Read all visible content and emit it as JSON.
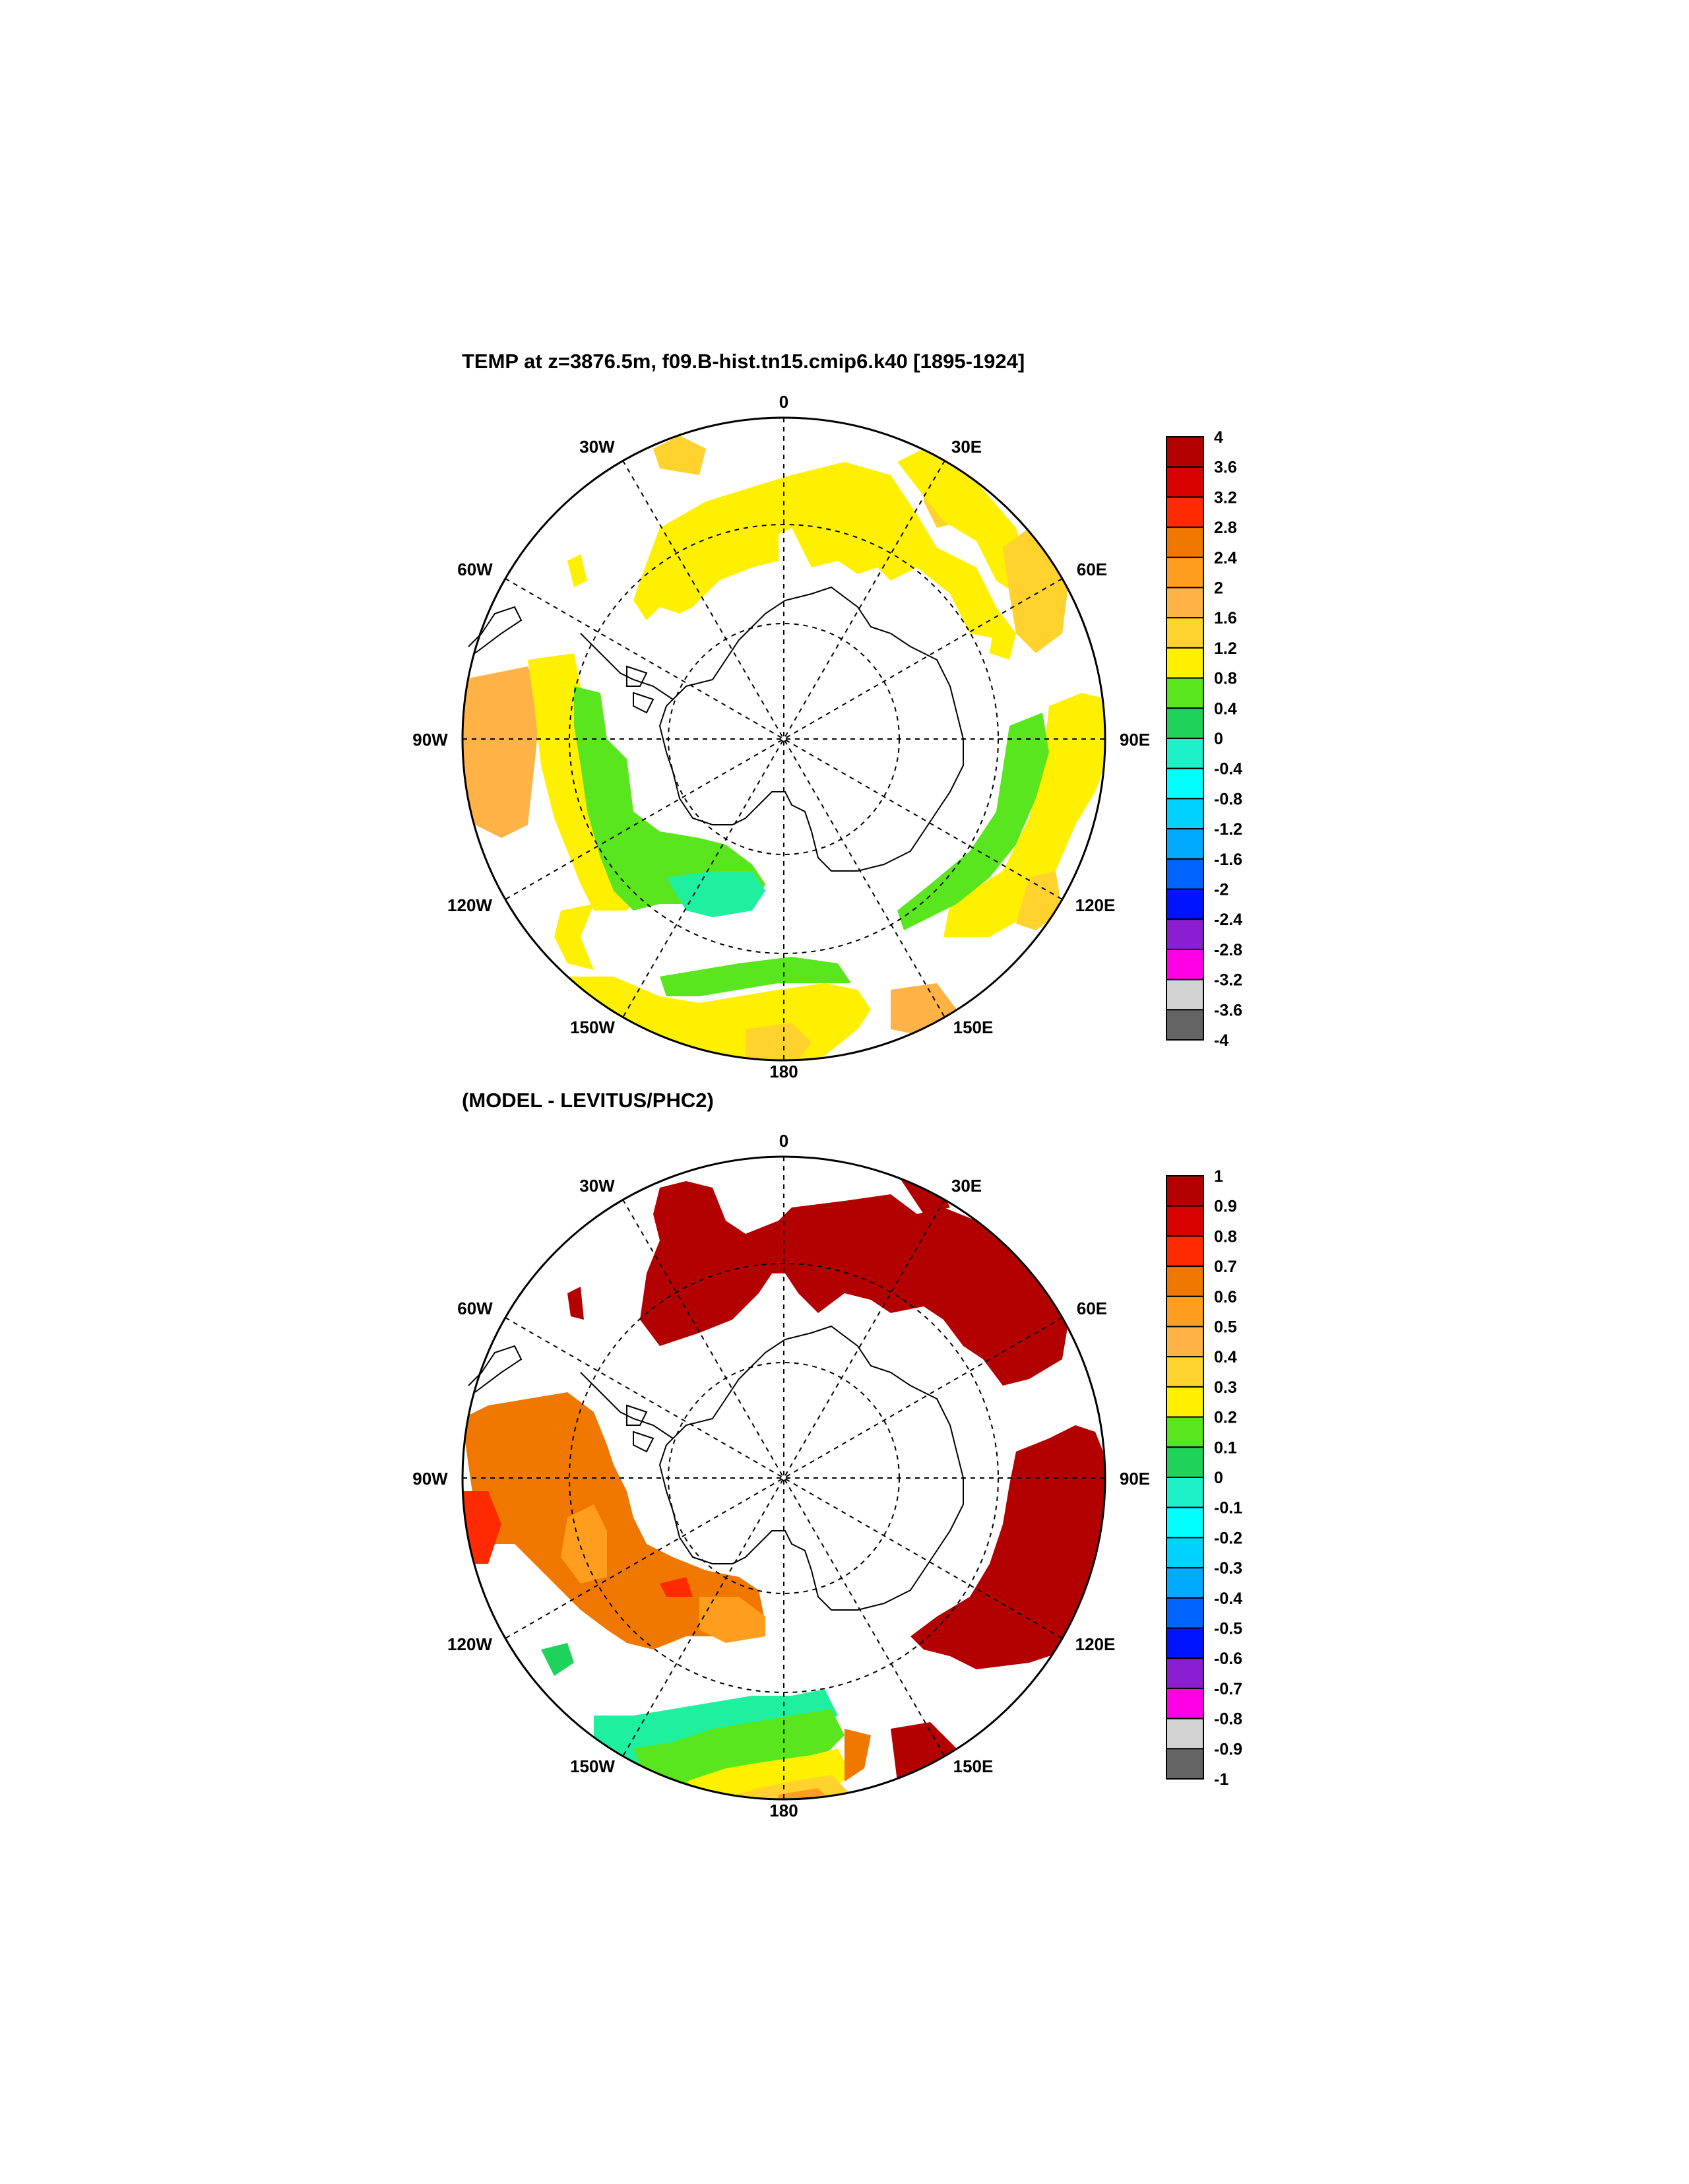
{
  "panels": [
    {
      "title": "TEMP at z=3876.5m, f09.B-hist.tn15.cmip6.k40 [1895-1924]",
      "lon_labels": [
        "0",
        "30E",
        "60E",
        "90E",
        "120E",
        "150E",
        "180",
        "150W",
        "120W",
        "90W",
        "60W",
        "30W"
      ],
      "colorbar": {
        "labels": [
          "4",
          "3.6",
          "3.2",
          "2.8",
          "2.4",
          "2",
          "1.6",
          "1.2",
          "0.8",
          "0.4",
          "0",
          "-0.4",
          "-0.8",
          "-1.2",
          "-1.6",
          "-2",
          "-2.4",
          "-2.8",
          "-3.2",
          "-3.6",
          "-4"
        ]
      }
    },
    {
      "title": "(MODEL - LEVITUS/PHC2)",
      "lon_labels": [
        "0",
        "30E",
        "60E",
        "90E",
        "120E",
        "150E",
        "180",
        "150W",
        "120W",
        "90W",
        "60W",
        "30W"
      ],
      "colorbar": {
        "labels": [
          "1",
          "0.9",
          "0.8",
          "0.7",
          "0.6",
          "0.5",
          "0.4",
          "0.3",
          "0.2",
          "0.1",
          "0",
          "-0.1",
          "-0.2",
          "-0.3",
          "-0.4",
          "-0.5",
          "-0.6",
          "-0.7",
          "-0.8",
          "-0.9",
          "-1"
        ]
      }
    }
  ],
  "colorbar_colors": [
    "#b30000",
    "#d90000",
    "#ff2a00",
    "#f07800",
    "#ff9d1e",
    "#ffb347",
    "#ffd22e",
    "#fff000",
    "#5ae61e",
    "#1ed25a",
    "#1ef0c8",
    "#00ffff",
    "#00d2ff",
    "#00aaff",
    "#0064ff",
    "#0014ff",
    "#8c1ed2",
    "#ff00e6",
    "#d2d2d2",
    "#646464"
  ],
  "map_colors": {
    "yellow": "#fff000",
    "gold": "#ffd22e",
    "light_orange": "#ffb347",
    "green": "#5ae61e",
    "bright_green": "#1ed25a",
    "dark_red": "#b30000",
    "red": "#ff2a00",
    "orange": "#f07800",
    "mint": "#1ef0a0"
  }
}
